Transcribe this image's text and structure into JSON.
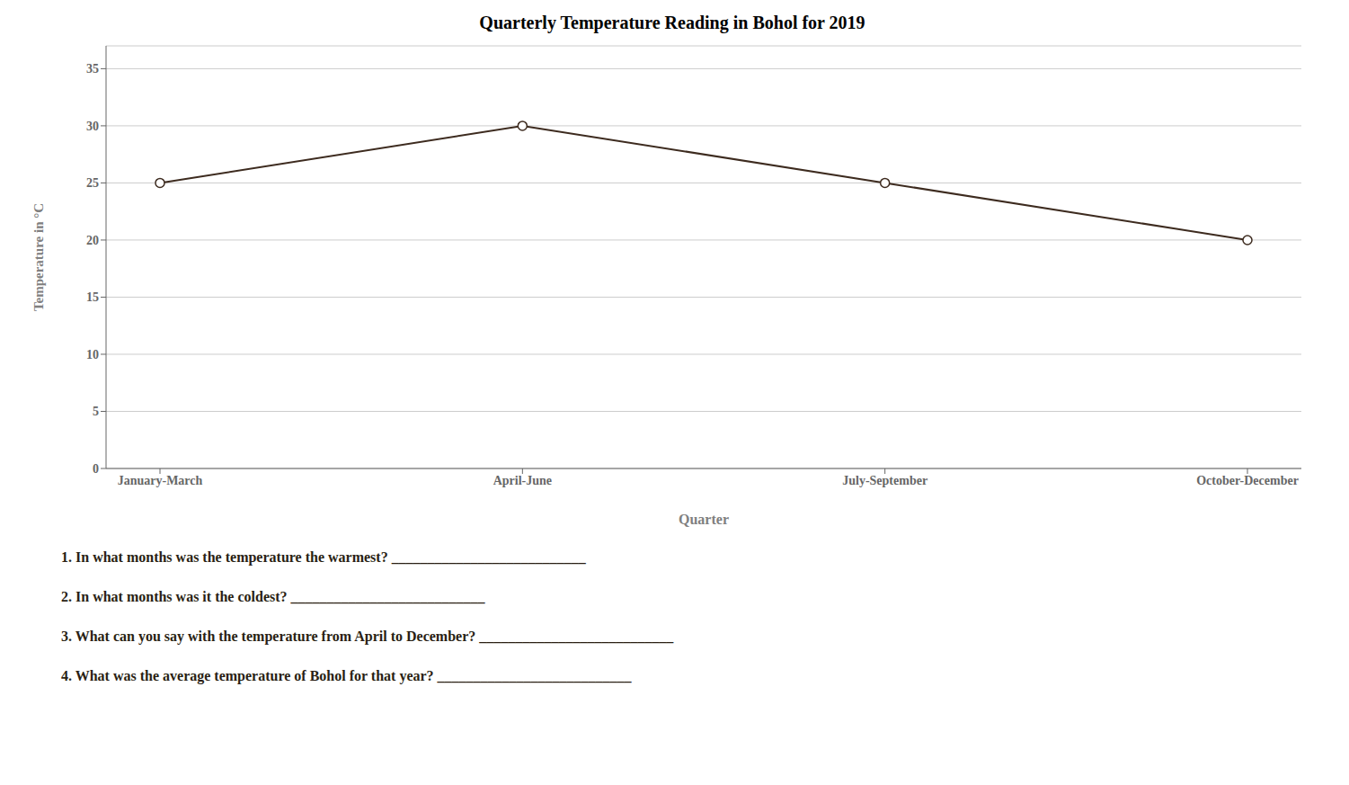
{
  "chart_data": {
    "type": "line",
    "title": "Quarterly Temperature Reading in Bohol for 2019",
    "x_label": "Quarter",
    "y_label": "Temperature in °C",
    "categories": [
      "January-March",
      "April-June",
      "July-September",
      "October-December"
    ],
    "values": [
      25,
      30,
      25,
      20
    ],
    "color": "#3d2b1f",
    "marker": "circle",
    "ylim": [
      0,
      37
    ],
    "yticks": [
      0,
      5,
      10,
      15,
      20,
      25,
      30,
      35
    ],
    "grid": true,
    "annotations": [
      "1.  In what months was the temperature the warmest? ___________________________",
      "2.  In what months was it the coldest? ___________________________",
      "3.  What can you say with the temperature from April to December? ___________________________",
      "4.  What was the average temperature of Bohol for that year? ___________________________"
    ]
  }
}
